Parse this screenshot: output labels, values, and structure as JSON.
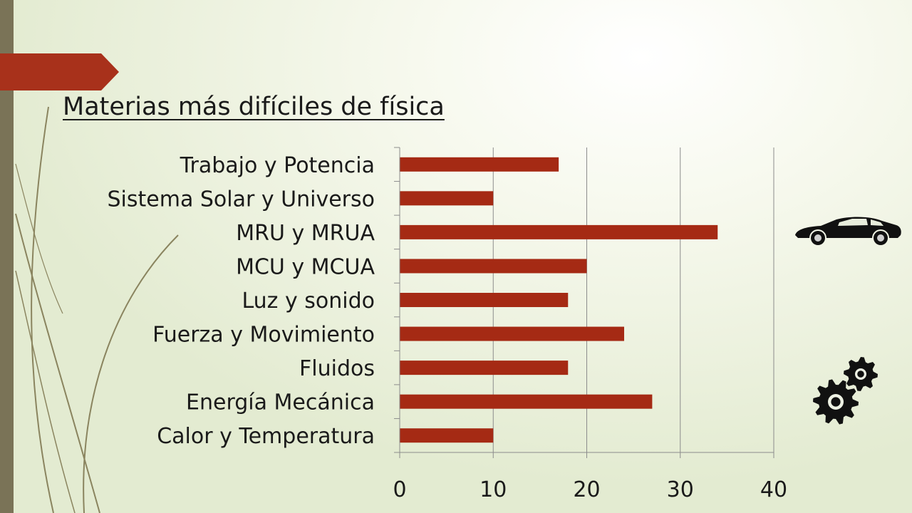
{
  "slide": {
    "title": "Materias más difíciles de física"
  },
  "colors": {
    "bar": "#a52a14",
    "accent_tab": "#a8311b",
    "side_bar": "#7a7357",
    "grid": "#8c8c8c"
  },
  "icons": [
    "car-icon",
    "gears-icon"
  ],
  "chart_data": {
    "type": "bar",
    "orientation": "horizontal",
    "categories": [
      "Trabajo y Potencia",
      "Sistema Solar y Universo",
      "MRU y MRUA",
      "MCU y MCUA",
      "Luz y sonido",
      "Fuerza y Movimiento",
      "Fluidos",
      "Energía Mecánica",
      "Calor y Temperatura"
    ],
    "values": [
      17,
      10,
      34,
      20,
      18,
      24,
      18,
      27,
      10
    ],
    "xlim": [
      0,
      40
    ],
    "xticks": [
      "0",
      "10",
      "20",
      "30",
      "40"
    ],
    "grid": true,
    "legend": "none"
  }
}
